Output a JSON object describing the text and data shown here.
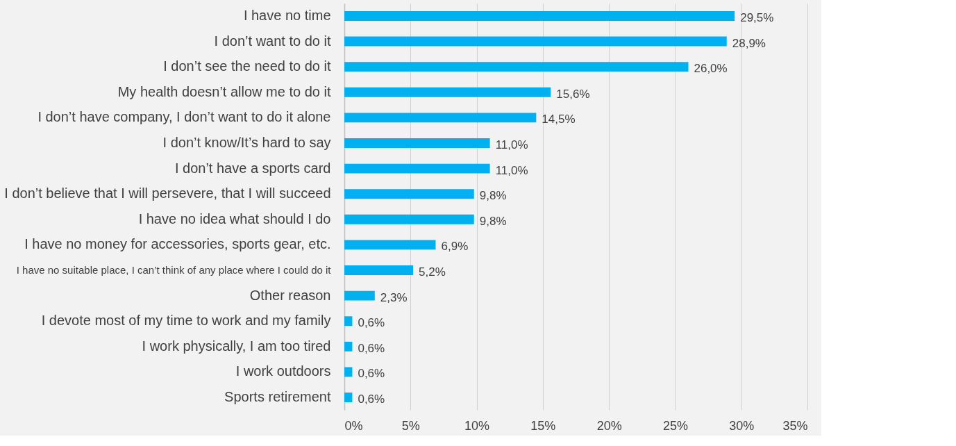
{
  "chart_data": {
    "type": "bar",
    "orientation": "horizontal",
    "categories": [
      "I have no time",
      "I don’t want to do it",
      "I don’t see the need to do it",
      "My health doesn’t allow me to do it",
      "I don’t have company, I don’t want to do it alone",
      "I don’t know/It’s hard to say",
      "I don’t have a sports card",
      "I don’t believe that I will persevere, that I will succeed",
      "I have no idea what should I do",
      "I have no money for accessories, sports gear, etc.",
      "I have no suitable place, I can’t think of any place where I could do it",
      "Other reason",
      "I devote most of my time to work and my family",
      "I work physically, I am too tired",
      "I work outdoors",
      "Sports retirement"
    ],
    "values": [
      29.5,
      28.9,
      26.0,
      15.6,
      14.5,
      11.0,
      11.0,
      9.8,
      9.8,
      6.9,
      5.2,
      2.3,
      0.6,
      0.6,
      0.6,
      0.6
    ],
    "value_labels": [
      "29,5%",
      "28,9%",
      "26,0%",
      "15,6%",
      "14,5%",
      "11,0%",
      "11,0%",
      "9,8%",
      "9,8%",
      "6,9%",
      "5,2%",
      "2,3%",
      "0,6%",
      "0,6%",
      "0,6%",
      "0,6%"
    ],
    "color": "#00b0f0",
    "xlim": [
      0,
      35
    ],
    "xticks": [
      {
        "value": 0,
        "label": "0%"
      },
      {
        "value": 5,
        "label": "5%"
      },
      {
        "value": 10,
        "label": "10%"
      },
      {
        "value": 15,
        "label": "15%"
      },
      {
        "value": 20,
        "label": "20%"
      },
      {
        "value": 25,
        "label": "25%"
      },
      {
        "value": 30,
        "label": "30%"
      },
      {
        "value": 35,
        "label": "35%"
      }
    ],
    "grid": "x"
  }
}
